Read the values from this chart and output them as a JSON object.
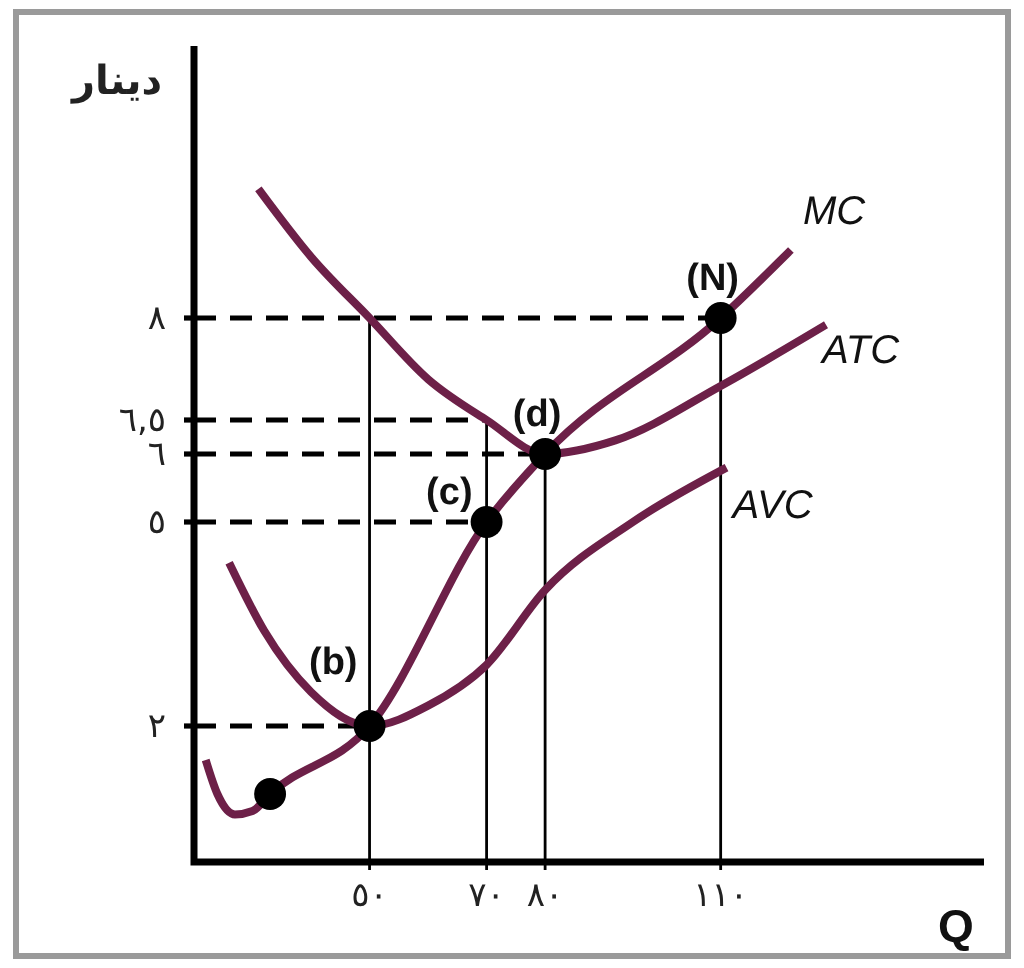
{
  "chart_data": {
    "type": "line",
    "xlabel": "Q",
    "ylabel": "دينار",
    "xlim": [
      20,
      155
    ],
    "ylim": [
      0,
      12
    ],
    "xticks": [
      {
        "value": 50,
        "label": "٥٠"
      },
      {
        "value": 70,
        "label": "٧٠"
      },
      {
        "value": 80,
        "label": "٨٠"
      },
      {
        "value": 110,
        "label": "١١٠"
      }
    ],
    "yticks": [
      {
        "value": 2,
        "label": "٢"
      },
      {
        "value": 5,
        "label": "٥"
      },
      {
        "value": 6,
        "label": "٦"
      },
      {
        "value": 6.5,
        "label": "٦,٥"
      },
      {
        "value": 8,
        "label": "٨"
      }
    ],
    "series": [
      {
        "type": "line",
        "color": "#000000",
        "line_style": "dashed",
        "x": [
          20,
          110
        ],
        "values": [
          8,
          8
        ]
      },
      {
        "type": "line",
        "color": "#000000",
        "line_style": "dashed",
        "x": [
          20,
          70
        ],
        "values": [
          6.5,
          6.5
        ]
      },
      {
        "type": "line",
        "color": "#000000",
        "line_style": "dashed",
        "x": [
          20,
          80
        ],
        "values": [
          6,
          6
        ]
      },
      {
        "type": "line",
        "color": "#000000",
        "line_style": "dashed",
        "x": [
          20,
          70
        ],
        "values": [
          5,
          5
        ]
      },
      {
        "type": "line",
        "color": "#000000",
        "line_style": "dashed",
        "x": [
          20,
          50
        ],
        "values": [
          2,
          2
        ]
      },
      {
        "type": "line",
        "color": "#000000",
        "line_style": "solid",
        "x": [
          50,
          50
        ],
        "values": [
          0,
          8
        ]
      },
      {
        "type": "line",
        "color": "#000000",
        "line_style": "solid",
        "x": [
          70,
          70
        ],
        "values": [
          0,
          6.5
        ]
      },
      {
        "type": "line",
        "color": "#000000",
        "line_style": "solid",
        "x": [
          80,
          80
        ],
        "values": [
          0,
          6
        ]
      },
      {
        "type": "line",
        "color": "#000000",
        "line_style": "solid",
        "x": [
          110,
          110
        ],
        "values": [
          0,
          8
        ]
      },
      {
        "name": "MC",
        "type": "line",
        "color": "#6d2048",
        "line_style": "solid",
        "x": [
          22,
          24,
          27,
          30,
          33,
          50,
          70,
          80,
          110,
          122
        ],
        "values": [
          1.5,
          1.0,
          0.7,
          0.75,
          1.0,
          2,
          5,
          6,
          8,
          9.0
        ]
      },
      {
        "name": "ATC",
        "type": "line",
        "color": "#6d2048",
        "line_style": "solid",
        "x": [
          31,
          40,
          50,
          60,
          70,
          80,
          92,
          110,
          128
        ],
        "values": [
          9.9,
          8.9,
          8,
          7.1,
          6.5,
          6,
          6.2,
          7.0,
          7.9
        ]
      },
      {
        "name": "AVC",
        "type": "line",
        "color": "#6d2048",
        "line_style": "solid",
        "x": [
          26,
          32,
          40,
          50,
          60,
          70,
          80,
          95,
          111
        ],
        "values": [
          4.4,
          3.4,
          2.5,
          2,
          2.3,
          2.9,
          4.0,
          5.0,
          5.8
        ]
      },
      {
        "type": "scatter",
        "color": "#000000",
        "marker": "circle",
        "x": [
          33,
          50,
          70,
          80,
          110
        ],
        "values": [
          1.0,
          2,
          5,
          6,
          8
        ]
      }
    ],
    "annotations": [
      {
        "text": "(b)",
        "x": 50,
        "y": 2
      },
      {
        "text": "(c)",
        "x": 70,
        "y": 5
      },
      {
        "text": "(d)",
        "x": 80,
        "y": 6
      },
      {
        "text": "(N)",
        "x": 110,
        "y": 8
      }
    ]
  }
}
